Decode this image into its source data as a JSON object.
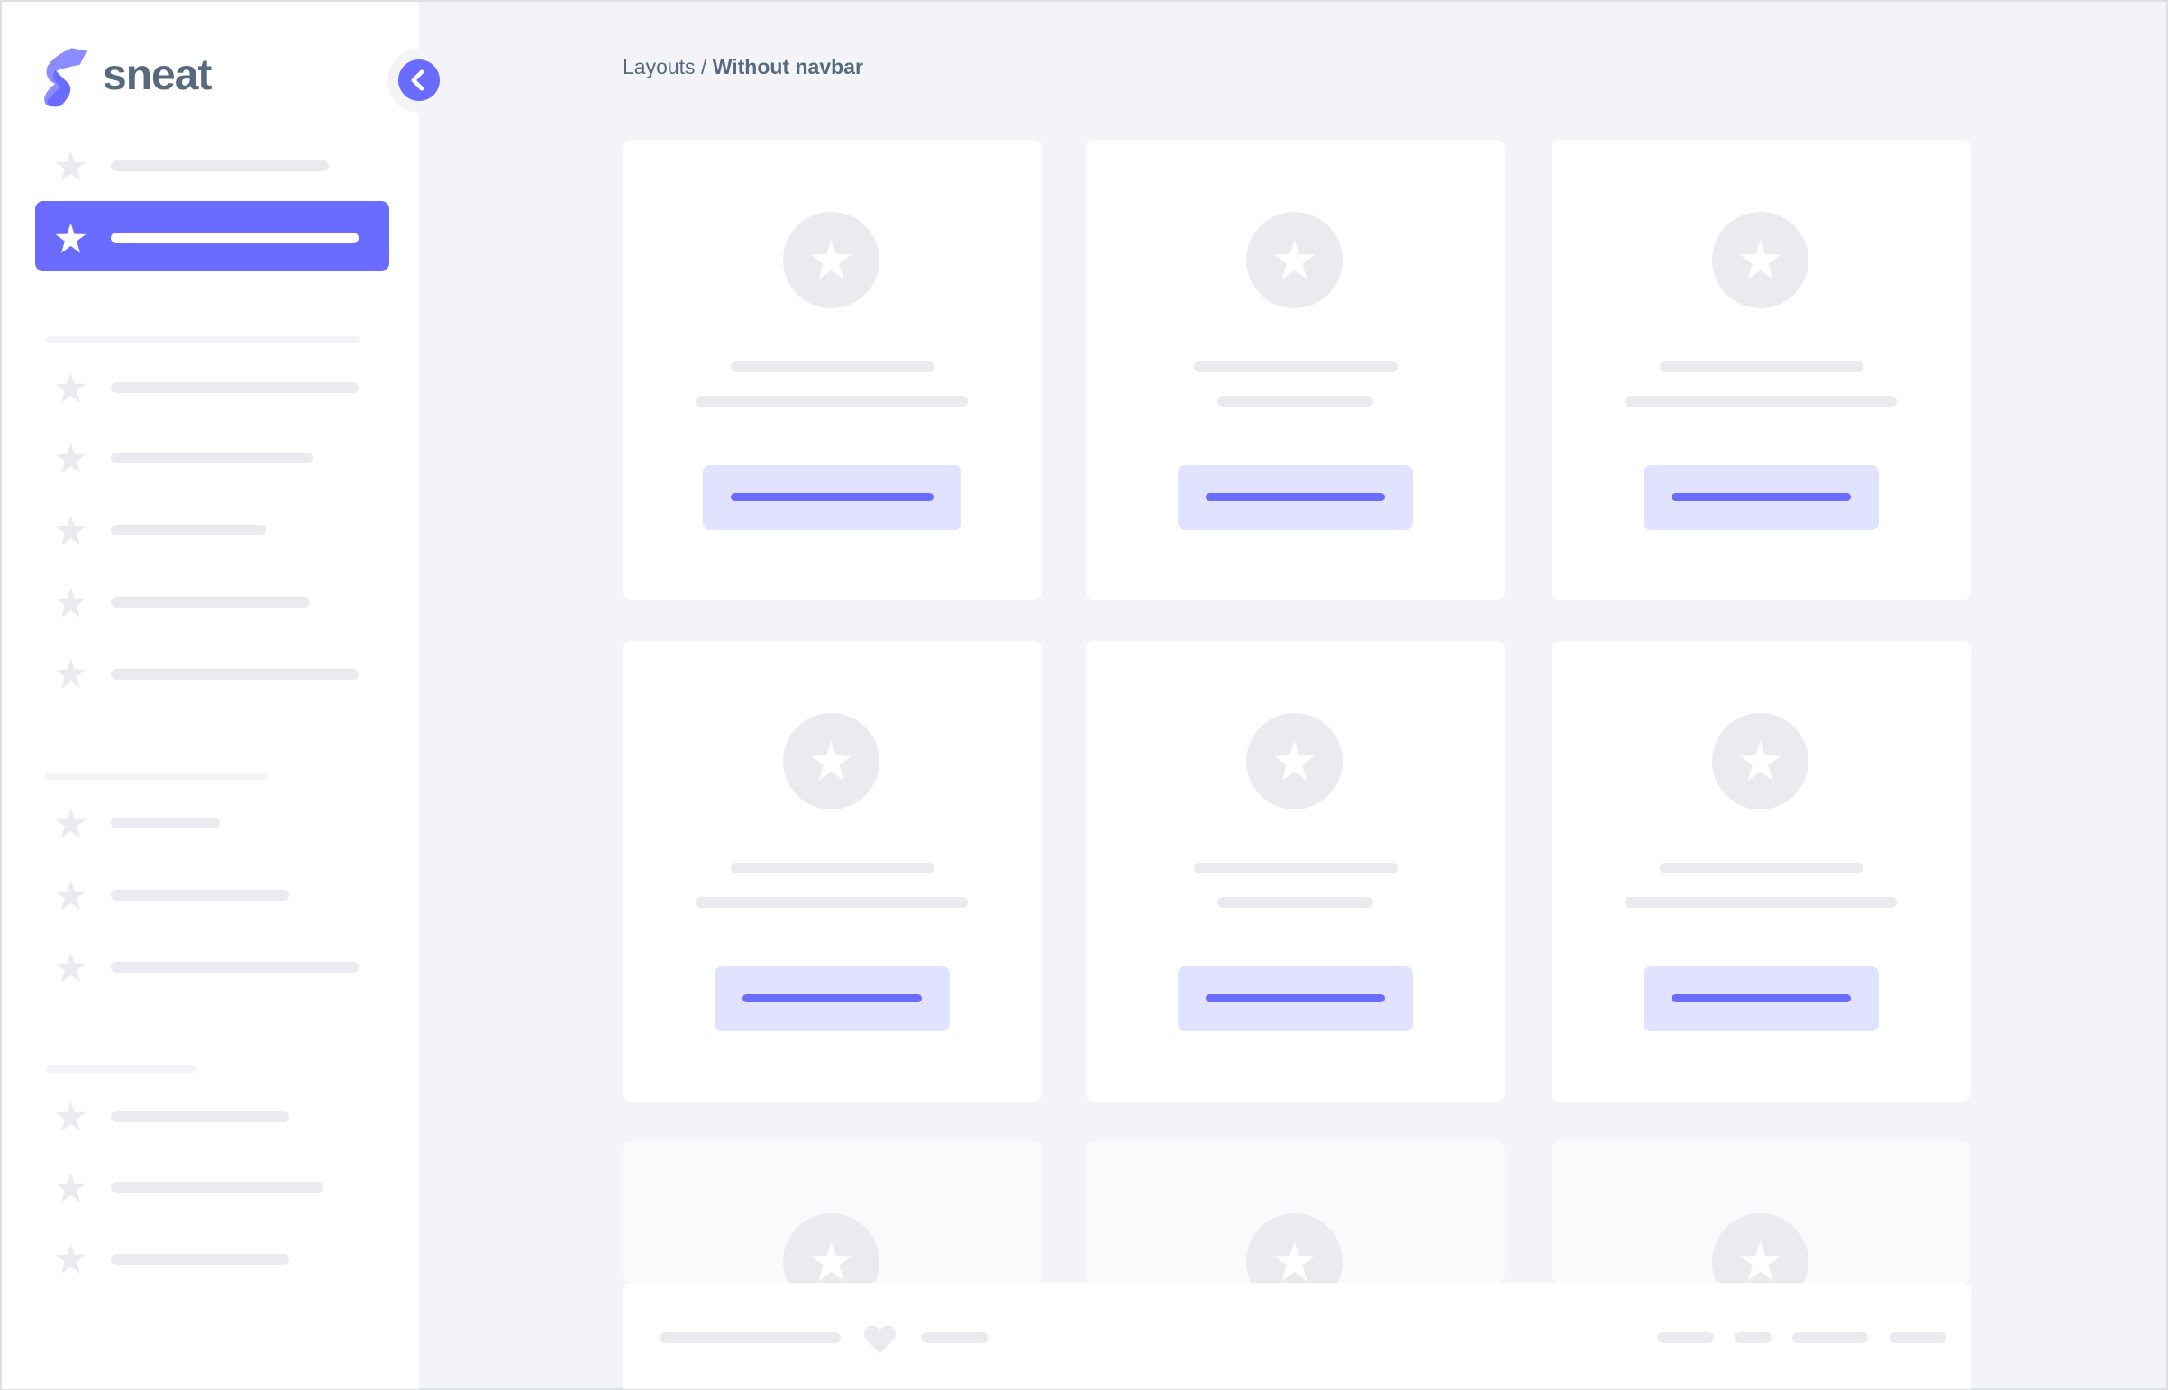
{
  "brand": {
    "name": "sneat"
  },
  "breadcrumb": {
    "parent": "Layouts",
    "separator": " / ",
    "current": "Without navbar"
  },
  "colors": {
    "primary": "#696cff",
    "primary_light": "#e1e2ff",
    "text": "#566a7f",
    "background": "#f4f4f8",
    "placeholder": "#ebebef"
  },
  "icons": {
    "logo": "sneat-logo",
    "toggle": "chevron-left-icon",
    "menu": "star-icon",
    "card": "star-icon",
    "footer": "heart-icon"
  }
}
